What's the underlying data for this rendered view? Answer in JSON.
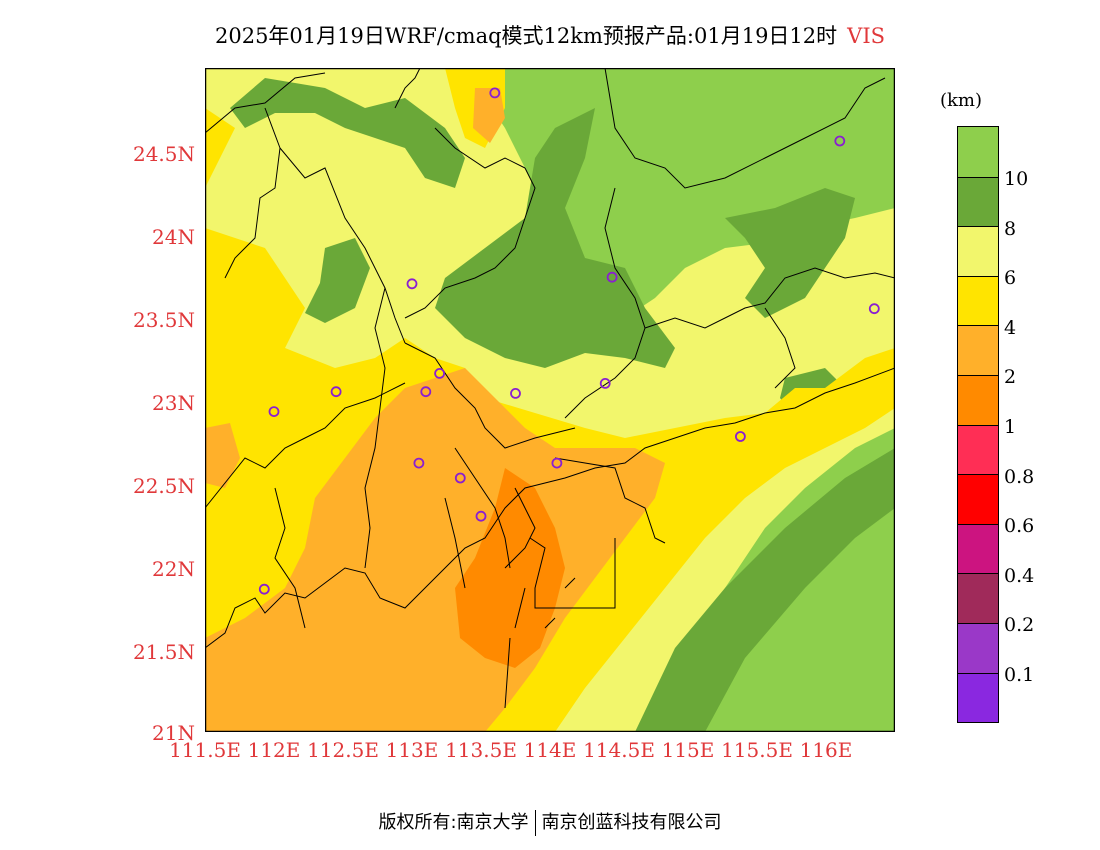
{
  "header": {
    "title": "2025年01月19日WRF/cmaq模式12km预报产品:01月19日12时",
    "variable": "VIS"
  },
  "axes": {
    "lat_labels": [
      "24.5N",
      "24N",
      "23.5N",
      "23N",
      "22.5N",
      "22N",
      "21.5N",
      "21N"
    ],
    "lon_labels": [
      "111.5E",
      "112E",
      "112.5E",
      "113E",
      "113.5E",
      "114E",
      "114.5E",
      "115E",
      "115.5E",
      "116E"
    ]
  },
  "colorbar": {
    "unit": "(km)",
    "colors": [
      "#8ecf4c",
      "#6aa838",
      "#f2f66c",
      "#ffe400",
      "#ffb02a",
      "#ff8a00",
      "#ff2e55",
      "#ff0000",
      "#cc1480",
      "#a02a5a",
      "#9a38c8",
      "#8a28e0"
    ],
    "labels": [
      "10",
      "8",
      "6",
      "4",
      "2",
      "1",
      "0.8",
      "0.6",
      "0.4",
      "0.2",
      "0.1"
    ]
  },
  "stations": [
    {
      "lon": 113.6,
      "lat": 24.85
    },
    {
      "lon": 116.1,
      "lat": 24.56
    },
    {
      "lon": 113.0,
      "lat": 23.7
    },
    {
      "lon": 114.45,
      "lat": 23.74
    },
    {
      "lon": 116.35,
      "lat": 23.55
    },
    {
      "lon": 112.45,
      "lat": 23.05
    },
    {
      "lon": 113.1,
      "lat": 23.05
    },
    {
      "lon": 113.2,
      "lat": 23.16
    },
    {
      "lon": 113.75,
      "lat": 23.04
    },
    {
      "lon": 114.4,
      "lat": 23.1
    },
    {
      "lon": 112.0,
      "lat": 22.93
    },
    {
      "lon": 115.38,
      "lat": 22.78
    },
    {
      "lon": 113.05,
      "lat": 22.62
    },
    {
      "lon": 113.35,
      "lat": 22.53
    },
    {
      "lon": 114.05,
      "lat": 22.62
    },
    {
      "lon": 113.5,
      "lat": 22.3
    },
    {
      "lon": 111.93,
      "lat": 21.86
    }
  ],
  "footer": {
    "left": "版权所有:南京大学",
    "right": "南京创蓝科技有限公司"
  }
}
